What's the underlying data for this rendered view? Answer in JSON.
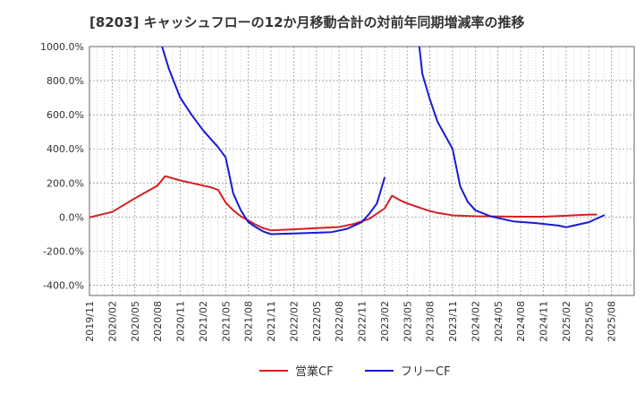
{
  "chart_data": {
    "type": "line",
    "title": "[8203]  キャッシュフローの12か月移動合計の対前年同期増減率の推移",
    "xlabel": "",
    "ylabel": "",
    "ylim": [
      -460,
      1000
    ],
    "yticks": [
      1000,
      800,
      600,
      400,
      200,
      0,
      -200,
      -400
    ],
    "ytick_labels": [
      "1000.0%",
      "800.0%",
      "600.0%",
      "400.0%",
      "200.0%",
      "0.0%",
      "-200.0%",
      "-400.0%"
    ],
    "x_range": [
      0,
      72
    ],
    "xtick_labels": [
      "2019/11",
      "2020/02",
      "2020/05",
      "2020/08",
      "2020/11",
      "2021/02",
      "2021/05",
      "2021/08",
      "2021/11",
      "2022/02",
      "2022/05",
      "2022/08",
      "2022/11",
      "2023/02",
      "2023/05",
      "2023/08",
      "2023/11",
      "2024/02",
      "2024/05",
      "2024/08",
      "2024/11",
      "2025/02",
      "2025/05",
      "2025/08"
    ],
    "x_note": "x values are months since 2019/11",
    "grid": true,
    "legend_position": "bottom-center",
    "series": [
      {
        "name": "営業CF",
        "color": "#d42020",
        "points": [
          [
            0,
            -2
          ],
          [
            3,
            30
          ],
          [
            6,
            110
          ],
          [
            9,
            185
          ],
          [
            10,
            240
          ],
          [
            12,
            215
          ],
          [
            15,
            185
          ],
          [
            16,
            175
          ],
          [
            17,
            160
          ],
          [
            18,
            85
          ],
          [
            19,
            40
          ],
          [
            20,
            5
          ],
          [
            21,
            -20
          ],
          [
            22,
            -45
          ],
          [
            23,
            -65
          ],
          [
            24,
            -78
          ],
          [
            27,
            -72
          ],
          [
            30,
            -65
          ],
          [
            33,
            -58
          ],
          [
            35,
            -40
          ],
          [
            37,
            -10
          ],
          [
            38,
            20
          ],
          [
            39,
            50
          ],
          [
            40,
            125
          ],
          [
            41,
            100
          ],
          [
            42,
            80
          ],
          [
            43,
            65
          ],
          [
            44,
            50
          ],
          [
            45,
            35
          ],
          [
            46,
            25
          ],
          [
            47,
            18
          ],
          [
            48,
            10
          ],
          [
            51,
            5
          ],
          [
            54,
            3
          ],
          [
            57,
            2
          ],
          [
            60,
            2
          ],
          [
            63,
            8
          ],
          [
            66,
            15
          ],
          [
            67,
            15
          ]
        ]
      },
      {
        "name": "フリーCF",
        "color": "#1a1ad4",
        "segments": [
          [
            [
              9.6,
              1000
            ],
            [
              10.5,
              870
            ],
            [
              12,
              700
            ],
            [
              13.5,
              600
            ],
            [
              15,
              510
            ],
            [
              16,
              460
            ],
            [
              17,
              410
            ],
            [
              18,
              350
            ],
            [
              19,
              140
            ],
            [
              20,
              40
            ],
            [
              21,
              -30
            ],
            [
              22,
              -60
            ],
            [
              23,
              -85
            ],
            [
              24,
              -100
            ],
            [
              27,
              -96
            ],
            [
              30,
              -92
            ],
            [
              32,
              -88
            ],
            [
              34,
              -70
            ],
            [
              36,
              -30
            ],
            [
              37,
              20
            ],
            [
              38,
              80
            ],
            [
              39,
              230
            ]
          ],
          [
            [
              43.6,
              1000
            ],
            [
              44,
              840
            ],
            [
              45,
              690
            ],
            [
              46,
              560
            ],
            [
              47,
              480
            ],
            [
              48,
              400
            ],
            [
              49,
              180
            ],
            [
              50,
              90
            ],
            [
              51,
              40
            ],
            [
              53,
              5
            ],
            [
              56,
              -25
            ],
            [
              59,
              -35
            ],
            [
              62,
              -50
            ],
            [
              63,
              -60
            ],
            [
              66,
              -30
            ],
            [
              68,
              10
            ]
          ]
        ]
      }
    ]
  }
}
